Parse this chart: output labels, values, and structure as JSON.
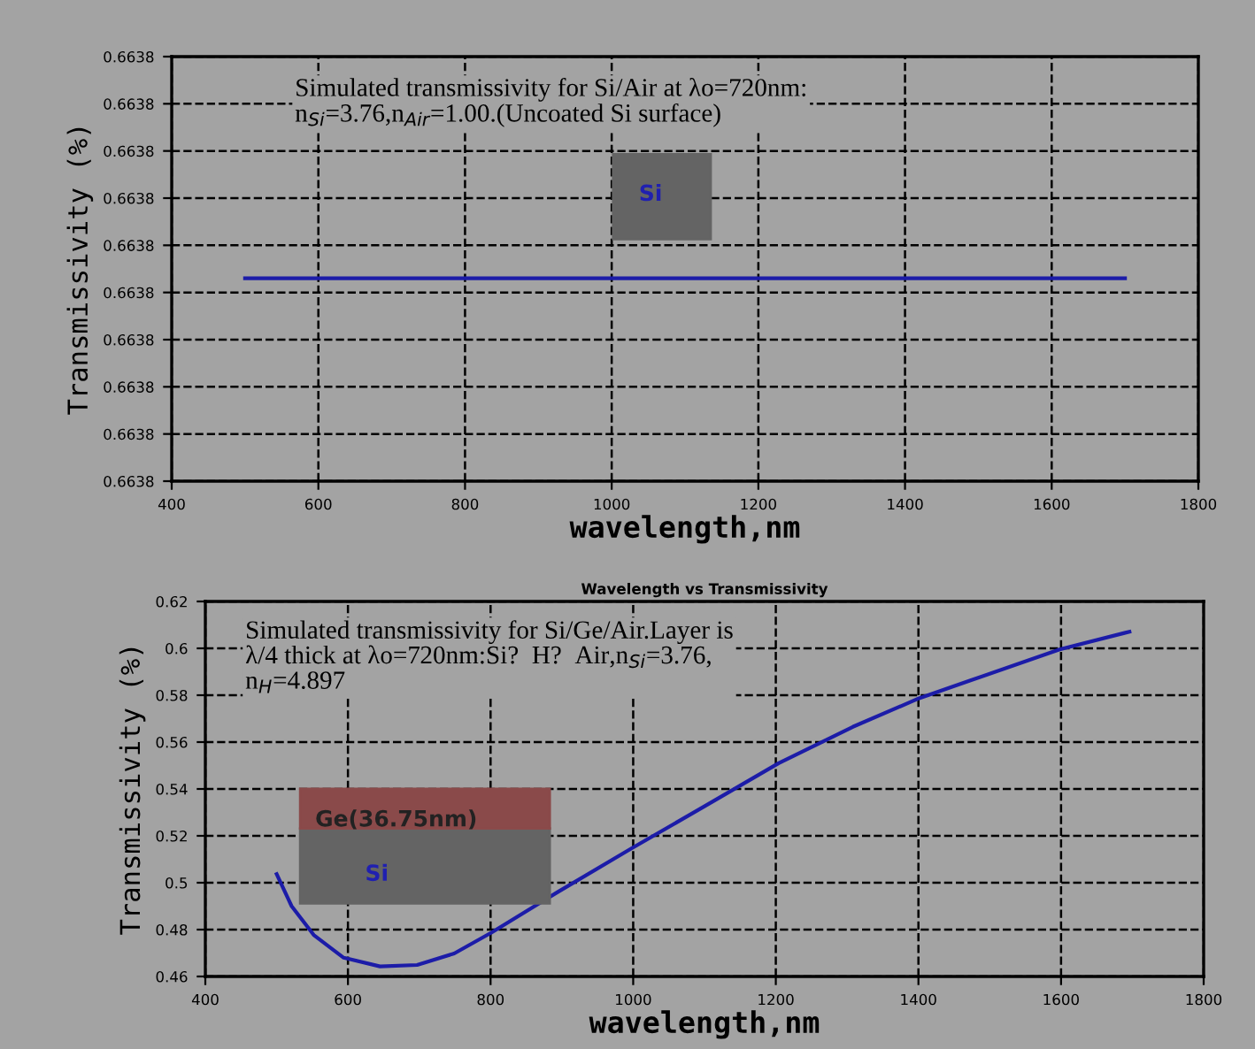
{
  "chart_data": [
    {
      "type": "line",
      "xlabel": "wavelength,nm",
      "ylabel": "Transmissivity (%)",
      "annotations": [
        "Simulated transmissivity for Si/Air at λo=720nm:\nn$_{Si}$=3.76,n$_{Air}$=1.00.(Uncoated Si surface)",
        "Si"
      ],
      "series": [
        {
          "color": "#1c1ca8",
          "x": [
            500,
            1700
          ],
          "values": [
            0.663803,
            0.663803
          ]
        }
      ],
      "xlim": [
        400,
        1800
      ],
      "xticks": [
        400,
        600,
        800,
        1000,
        1200,
        1400,
        1600,
        1800
      ],
      "ylim": [
        0.66376,
        0.66385
      ],
      "yticks": [
        {
          "value": 0.66376,
          "label": "0.6638"
        },
        {
          "value": 0.66377,
          "label": "0.6638"
        },
        {
          "value": 0.66378,
          "label": "0.6638"
        },
        {
          "value": 0.66379,
          "label": "0.6638"
        },
        {
          "value": 0.6638,
          "label": "0.6638"
        },
        {
          "value": 0.66381,
          "label": "0.6638"
        },
        {
          "value": 0.66382,
          "label": "0.6638"
        },
        {
          "value": 0.66383,
          "label": "0.6638"
        },
        {
          "value": 0.66384,
          "label": "0.6638"
        },
        {
          "value": 0.66385,
          "label": "0.6638"
        }
      ],
      "grid": true,
      "line_style": "solid"
    },
    {
      "type": "line",
      "title": "Wavelength vs Transmissivity",
      "xlabel": "wavelength,nm",
      "ylabel": "Transmissivity (%)",
      "annotations": [
        "Simulated transmissivity for Si/Ge/Air.Layer is\nλ/4 thick at λo=720nm:Si?  H?  Air,n$_{Si}$=3.76,\nn$_{H}$=4.897",
        "Ge(36.75nm)",
        "Si"
      ],
      "series": [
        {
          "color": "#1c1ca8",
          "x": [
            500,
            521,
            552,
            594,
            645,
            697,
            749,
            801,
            894,
            997,
            1101,
            1204,
            1308,
            1401,
            1473,
            1598,
            1696
          ],
          "values": [
            0.5037,
            0.49,
            0.4777,
            0.468,
            0.4643,
            0.4649,
            0.4698,
            0.4787,
            0.496,
            0.5145,
            0.5328,
            0.551,
            0.5665,
            0.5787,
            0.5863,
            0.5995,
            0.6071
          ]
        }
      ],
      "xlim": [
        400,
        1800
      ],
      "xticks": [
        400,
        600,
        800,
        1000,
        1200,
        1400,
        1600,
        1800
      ],
      "ylim": [
        0.46,
        0.62
      ],
      "yticks": [
        0.46,
        0.48,
        {
          "value": 0.5,
          "label": "0.5"
        },
        0.52,
        0.54,
        0.56,
        0.58,
        {
          "value": 0.6,
          "label": "0.6"
        },
        0.62
      ],
      "grid": true,
      "line_style": "solid"
    }
  ]
}
